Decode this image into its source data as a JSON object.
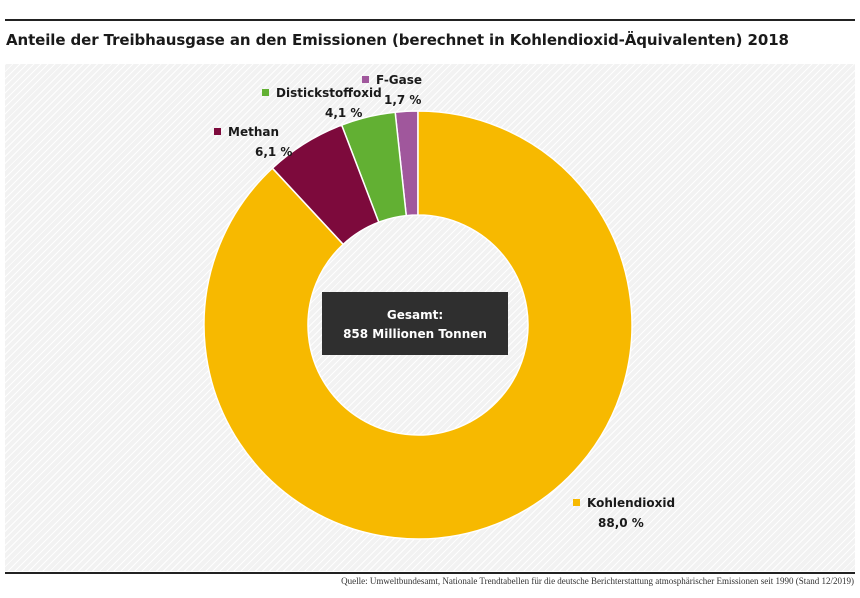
{
  "title": "Anteile der Treibhausgase an den Emissionen (berechnet in Kohlendioxid-Äquivalenten) 2018",
  "source": "Quelle: Umweltbundesamt, Nationale Trendtabellen für die deutsche Berichterstattung atmosphärischer Emissionen seit 1990 (Stand 12/2019)",
  "center": {
    "line1": "Gesamt:",
    "line2": "858  Millionen Tonnen"
  },
  "chart_data": {
    "type": "pie",
    "variant": "donut",
    "title": "Anteile der Treibhausgase an den Emissionen (berechnet in Kohlendioxid-Äquivalenten) 2018",
    "categories": [
      "F-Gase",
      "Distickstoffoxid",
      "Methan",
      "Kohlendioxid"
    ],
    "values": [
      1.7,
      4.1,
      6.1,
      88.0
    ],
    "value_labels": [
      "1,7 %",
      "4,1 %",
      "6,1 %",
      "88,0 %"
    ],
    "colors": [
      "#a0579c",
      "#62b033",
      "#7d0a3c",
      "#f7b900"
    ],
    "total_label": "Gesamt: 858 Millionen Tonnen"
  }
}
